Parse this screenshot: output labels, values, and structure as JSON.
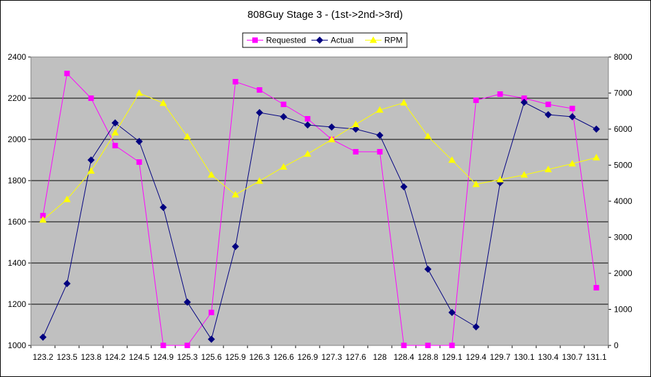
{
  "chart_data": {
    "type": "line",
    "title": "808Guy Stage 3 - (1st->2nd->3rd)",
    "xlabel": "",
    "ylabel": "",
    "x": [
      "123.2",
      "123.5",
      "123.8",
      "124.2",
      "124.5",
      "124.9",
      "125.3",
      "125.6",
      "125.9",
      "126.3",
      "126.6",
      "126.9",
      "127.3",
      "127.6",
      "128",
      "128.4",
      "128.8",
      "129.1",
      "129.4",
      "129.7",
      "130.1",
      "130.4",
      "130.7",
      "131.1"
    ],
    "ylim": [
      1000,
      2400
    ],
    "y2lim": [
      0,
      8000
    ],
    "yticks": [
      1000,
      1200,
      1400,
      1600,
      1800,
      2000,
      2200,
      2400
    ],
    "y2ticks": [
      0,
      1000,
      2000,
      3000,
      4000,
      5000,
      6000,
      7000,
      8000
    ],
    "grid": true,
    "legend_position": "top-center",
    "plot_background": "#c0c0c0",
    "series": [
      {
        "name": "Requested",
        "axis": "left",
        "color": "#ff00ff",
        "marker": "square",
        "values": [
          1630,
          2320,
          2200,
          1970,
          1890,
          1000,
          1000,
          1160,
          2280,
          2240,
          2170,
          2100,
          2000,
          1940,
          1940,
          1000,
          1000,
          1000,
          2190,
          2220,
          2200,
          2170,
          2150,
          1280
        ]
      },
      {
        "name": "Actual",
        "axis": "left",
        "color": "#000080",
        "marker": "diamond",
        "values": [
          1040,
          1300,
          1900,
          2080,
          1990,
          1670,
          1210,
          1030,
          1480,
          2130,
          2110,
          2070,
          2060,
          2050,
          2020,
          1770,
          1370,
          1160,
          1090,
          1790,
          2180,
          2120,
          2110,
          2050
        ]
      },
      {
        "name": "RPM",
        "axis": "right",
        "color": "#ffff00",
        "marker": "triangle",
        "values": [
          3480,
          4050,
          4840,
          5900,
          7000,
          6720,
          5790,
          4730,
          4180,
          4560,
          4950,
          5310,
          5710,
          6130,
          6530,
          6730,
          5800,
          5140,
          4470,
          4600,
          4730,
          4880,
          5040,
          5210
        ]
      }
    ]
  }
}
